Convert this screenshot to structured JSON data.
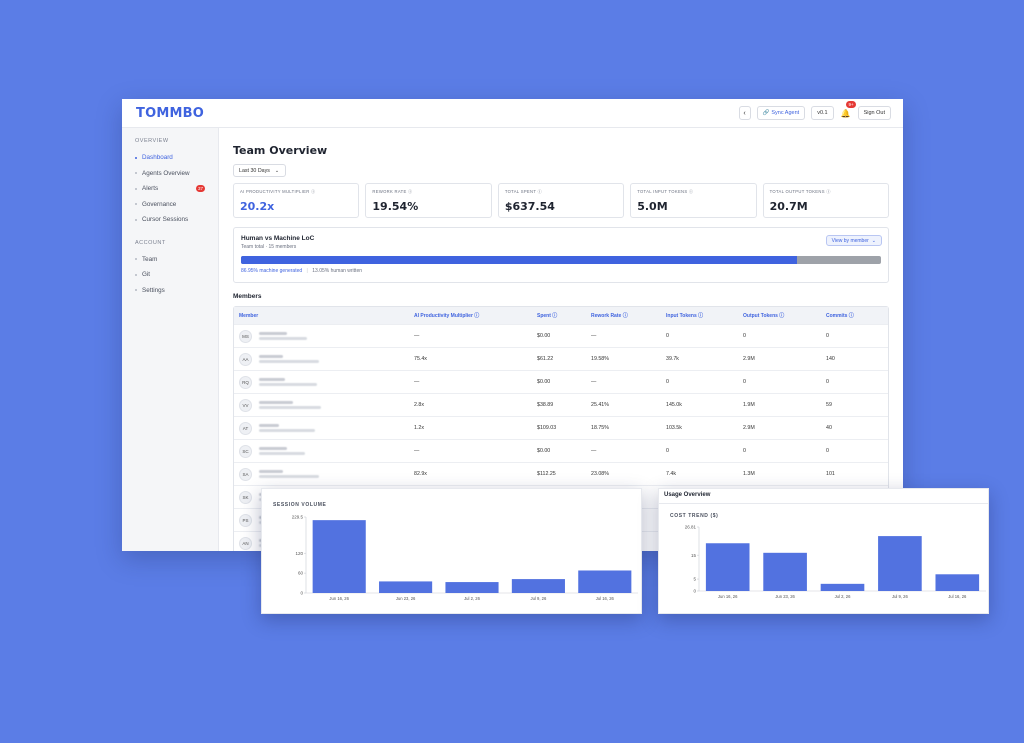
{
  "app": {
    "logo": "TOMMBO"
  },
  "topbar": {
    "back_icon": "chevron-left-icon",
    "sync_label": "Sync Agent",
    "version": "v0.1",
    "notif_count": "9+",
    "sign_out": "Sign Out"
  },
  "sidebar": {
    "overview_label": "OVERVIEW",
    "overview_items": [
      {
        "label": "Dashboard",
        "active": true
      },
      {
        "label": "Agents Overview"
      },
      {
        "label": "Alerts",
        "badge": "37"
      },
      {
        "label": "Governance"
      },
      {
        "label": "Cursor Sessions"
      }
    ],
    "account_label": "ACCOUNT",
    "account_items": [
      {
        "label": "Team"
      },
      {
        "label": "Git"
      },
      {
        "label": "Settings"
      }
    ]
  },
  "main": {
    "title": "Team Overview",
    "range": "Last 30 Days",
    "kpis": [
      {
        "label": "AI PRODUCTIVITY MULTIPLIER",
        "value": "20.2x"
      },
      {
        "label": "REWORK RATE",
        "value": "19.54%"
      },
      {
        "label": "TOTAL SPENT",
        "value": "$637.54"
      },
      {
        "label": "TOTAL INPUT TOKENS",
        "value": "5.0M"
      },
      {
        "label": "TOTAL OUTPUT TOKENS",
        "value": "20.7M"
      }
    ],
    "loc": {
      "title": "Human vs Machine LoC",
      "subtitle": "Team total · 15 members",
      "view_button": "View by member",
      "machine_pct": 86.95,
      "machine_label": "86.95% machine generated",
      "human_label": "13.05% human written"
    },
    "members_title": "Members",
    "table": {
      "headers": [
        "Member",
        "AI Productivity Multiplier",
        "Spent",
        "Rework Rate",
        "Input Tokens",
        "Output Tokens",
        "Commits"
      ],
      "rows": [
        {
          "initials": "MS",
          "aip": "—",
          "spent": "$0.00",
          "rework": "—",
          "input": "0",
          "output": "0",
          "commits": "0"
        },
        {
          "initials": "AA",
          "aip": "75.4x",
          "spent": "$61.22",
          "rework": "19.58%",
          "input": "39.7k",
          "output": "2.9M",
          "commits": "140"
        },
        {
          "initials": "RQ",
          "aip": "—",
          "spent": "$0.00",
          "rework": "—",
          "input": "0",
          "output": "0",
          "commits": "0"
        },
        {
          "initials": "VV",
          "aip": "2.8x",
          "spent": "$38.89",
          "rework": "25.41%",
          "input": "145.0k",
          "output": "1.9M",
          "commits": "59"
        },
        {
          "initials": "AT",
          "aip": "1.2x",
          "spent": "$109.03",
          "rework": "18.75%",
          "input": "103.5k",
          "output": "2.9M",
          "commits": "40"
        },
        {
          "initials": "SC",
          "aip": "—",
          "spent": "$0.00",
          "rework": "—",
          "input": "0",
          "output": "0",
          "commits": "0"
        },
        {
          "initials": "SA",
          "aip": "82.9x",
          "spent": "$112.25",
          "rework": "23.08%",
          "input": "7.4k",
          "output": "1.3M",
          "commits": "101"
        },
        {
          "initials": "SK",
          "aip": "",
          "spent": "",
          "rework": "",
          "input": "",
          "output": "",
          "commits": ""
        },
        {
          "initials": "PS",
          "aip": "",
          "spent": "",
          "rework": "",
          "input": "",
          "output": "",
          "commits": ""
        },
        {
          "initials": "AN",
          "aip": "",
          "spent": "",
          "rework": "",
          "input": "",
          "output": "",
          "commits": ""
        }
      ]
    }
  },
  "chart_data": [
    {
      "type": "bar",
      "title": "SESSION VOLUME",
      "categories": [
        "Jun 16, 26",
        "Jun 23, 26",
        "Jul 2, 26",
        "Jul 9, 26",
        "Jul 16, 26"
      ],
      "values": [
        220,
        35,
        33,
        42,
        68
      ],
      "yticks": [
        0,
        60,
        120,
        229.5
      ],
      "ytick_labels": [
        "0",
        "60",
        "120",
        "229.5"
      ],
      "ylim": [
        0,
        229.5
      ],
      "color": "#5272e0"
    },
    {
      "type": "bar",
      "panel_title": "Usage Overview",
      "title": "COST TREND ($)",
      "categories": [
        "Jun 16, 26",
        "Jun 23, 26",
        "Jul 2, 26",
        "Jul 9, 26",
        "Jul 16, 26"
      ],
      "values": [
        20,
        16,
        3,
        23,
        7
      ],
      "yticks": [
        0,
        5,
        15,
        26.81
      ],
      "ytick_labels": [
        "0",
        "5",
        "15",
        "26.81"
      ],
      "ylim": [
        0,
        26.81
      ],
      "color": "#5272e0"
    }
  ]
}
